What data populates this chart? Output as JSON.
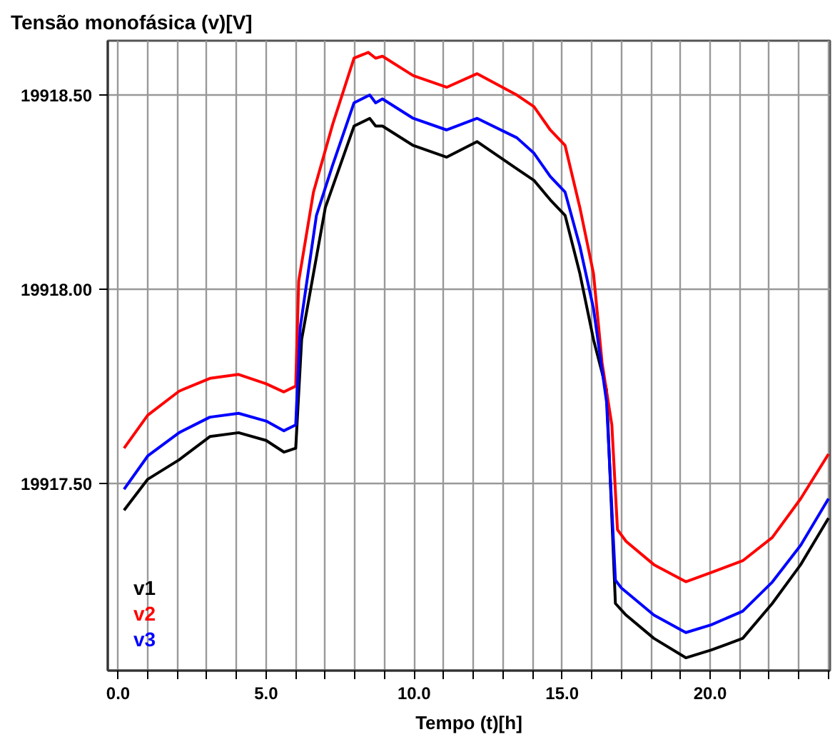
{
  "chart_data": {
    "type": "line",
    "title": "Tensão monofásica (v)[V]",
    "xlabel": "Tempo (t)[h]",
    "xlim": [
      -0.35,
      24.05
    ],
    "ylim": [
      19917.017,
      19918.64
    ],
    "xticks": [
      {
        "value": 0,
        "label": "0.0"
      },
      {
        "value": 1,
        "label": null
      },
      {
        "value": 2,
        "label": null
      },
      {
        "value": 3,
        "label": null
      },
      {
        "value": 4,
        "label": null
      },
      {
        "value": 5,
        "label": "5.0"
      },
      {
        "value": 6,
        "label": null
      },
      {
        "value": 7,
        "label": null
      },
      {
        "value": 8,
        "label": null
      },
      {
        "value": 9,
        "label": null
      },
      {
        "value": 10,
        "label": "10.0"
      },
      {
        "value": 11,
        "label": null
      },
      {
        "value": 12,
        "label": null
      },
      {
        "value": 13,
        "label": null
      },
      {
        "value": 14,
        "label": null
      },
      {
        "value": 15,
        "label": "15.0"
      },
      {
        "value": 16,
        "label": null
      },
      {
        "value": 17,
        "label": null
      },
      {
        "value": 18,
        "label": null
      },
      {
        "value": 19,
        "label": null
      },
      {
        "value": 20,
        "label": "20.0"
      },
      {
        "value": 21,
        "label": null
      },
      {
        "value": 22,
        "label": null
      },
      {
        "value": 23,
        "label": null
      },
      {
        "value": 24,
        "label": null
      }
    ],
    "yticks": [
      {
        "value": 19917.5,
        "label": "19917.50"
      },
      {
        "value": 19918.0,
        "label": "19918.00"
      },
      {
        "value": 19918.5,
        "label": "19918.50"
      }
    ],
    "grid": true,
    "legend": "bottom left",
    "marker": "none",
    "line_style": "solid",
    "series": [
      {
        "name": "v1",
        "color": "#000000",
        "x": [
          0.2,
          1.0,
          2.06,
          3.1,
          4.07,
          5.0,
          5.6,
          6.0,
          6.2,
          7.0,
          7.97,
          8.5,
          8.7,
          8.93,
          9.97,
          11.1,
          12.13,
          13.47,
          14.05,
          14.6,
          15.1,
          15.6,
          16.06,
          16.5,
          16.8,
          17.16,
          18.1,
          19.18,
          20.04,
          21.1,
          22.1,
          23.06,
          24.0
        ],
        "values": [
          19917.43,
          19917.51,
          19917.56,
          19917.62,
          19917.63,
          19917.61,
          19917.58,
          19917.59,
          19917.87,
          19918.21,
          19918.42,
          19918.44,
          19918.42,
          19918.42,
          19918.37,
          19918.34,
          19918.38,
          19918.31,
          19918.28,
          19918.23,
          19918.19,
          19918.04,
          19917.87,
          19917.74,
          19917.19,
          19917.16,
          19917.1,
          19917.05,
          19917.07,
          19917.1,
          19917.19,
          19917.29,
          19917.41
        ]
      },
      {
        "name": "v2",
        "color": "#ff0000",
        "x": [
          0.2,
          1.0,
          2.06,
          3.1,
          4.07,
          5.0,
          5.6,
          6.0,
          6.1,
          6.6,
          7.25,
          7.97,
          8.45,
          8.7,
          8.93,
          9.97,
          11.1,
          12.13,
          13.47,
          14.05,
          14.6,
          15.1,
          15.6,
          16.06,
          16.35,
          16.68,
          16.87,
          17.16,
          18.1,
          19.18,
          20.04,
          21.1,
          22.1,
          23.06,
          24.0
        ],
        "values": [
          19917.59,
          19917.675,
          19917.737,
          19917.77,
          19917.78,
          19917.756,
          19917.735,
          19917.75,
          19918.02,
          19918.25,
          19918.425,
          19918.595,
          19918.61,
          19918.595,
          19918.6,
          19918.55,
          19918.52,
          19918.555,
          19918.5,
          19918.47,
          19918.41,
          19918.37,
          19918.21,
          19918.04,
          19917.81,
          19917.65,
          19917.38,
          19917.35,
          19917.29,
          19917.246,
          19917.27,
          19917.3,
          19917.36,
          19917.46,
          19917.575
        ]
      },
      {
        "name": "v3",
        "color": "#0000ff",
        "x": [
          0.2,
          1.0,
          2.06,
          3.1,
          4.07,
          5.0,
          5.6,
          6.0,
          6.15,
          6.7,
          7.25,
          7.97,
          8.5,
          8.7,
          8.93,
          9.97,
          11.1,
          12.13,
          13.47,
          14.05,
          14.6,
          15.1,
          15.6,
          16.06,
          16.5,
          16.8,
          17.0,
          18.1,
          19.18,
          20.04,
          21.1,
          22.1,
          23.06,
          24.0
        ],
        "values": [
          19917.484,
          19917.57,
          19917.63,
          19917.67,
          19917.68,
          19917.66,
          19917.635,
          19917.65,
          19917.9,
          19918.19,
          19918.32,
          19918.48,
          19918.5,
          19918.48,
          19918.49,
          19918.44,
          19918.41,
          19918.44,
          19918.39,
          19918.35,
          19918.29,
          19918.25,
          19918.11,
          19917.95,
          19917.71,
          19917.25,
          19917.23,
          19917.16,
          19917.115,
          19917.135,
          19917.17,
          19917.245,
          19917.34,
          19917.46
        ]
      }
    ]
  }
}
